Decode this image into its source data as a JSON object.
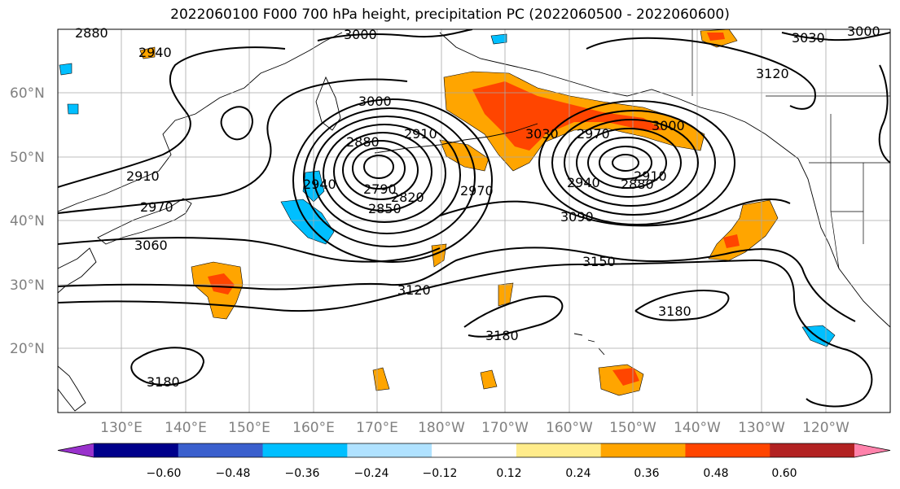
{
  "title": "2022060100 F000 700 hPa height, precipitation PC (2022060500 - 2022060600)",
  "map": {
    "lat_labels": [
      "60°N",
      "50°N",
      "40°N",
      "30°N",
      "20°N"
    ],
    "lon_labels": [
      "130°E",
      "140°E",
      "150°E",
      "160°E",
      "170°E",
      "180°W",
      "170°W",
      "160°W",
      "150°W",
      "140°W",
      "130°W",
      "120°W"
    ],
    "contour_labels": [
      "2880",
      "2940",
      "3000",
      "3030",
      "3000",
      "3120",
      "3000",
      "2880",
      "2910",
      "3030",
      "2970",
      "3000",
      "2910",
      "2970",
      "2940",
      "2790",
      "2820",
      "2850",
      "2970",
      "2940",
      "2880",
      "2910",
      "3090",
      "3060",
      "3150",
      "3120",
      "3180",
      "3180",
      "3180"
    ],
    "colors": {
      "low_center": "#ff4500",
      "high_positive": "#ffa500",
      "negative": "#00bfff"
    }
  },
  "colorbar": {
    "tick_labels": [
      "−0.60",
      "−0.48",
      "−0.36",
      "−0.24",
      "−0.12",
      "0.12",
      "0.24",
      "0.36",
      "0.48",
      "0.60"
    ],
    "colors": [
      "#9932cc",
      "#00008b",
      "#3a5fcd",
      "#00bfff",
      "#b0e2ff",
      "#ffffff",
      "#ffec8b",
      "#ffa500",
      "#ff4500",
      "#b22222",
      "#ff82ab"
    ]
  }
}
